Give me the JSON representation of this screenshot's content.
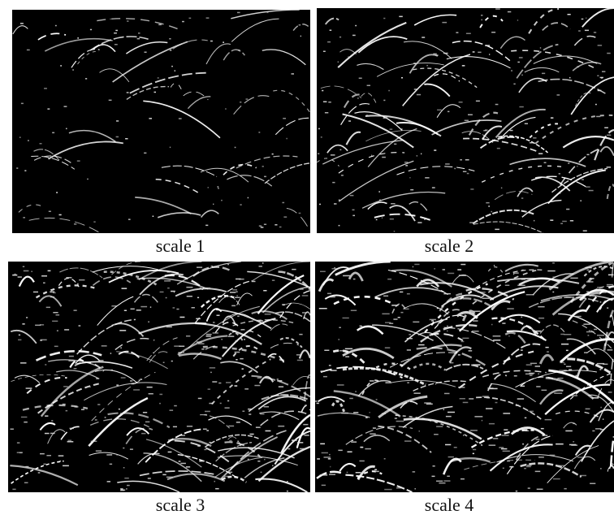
{
  "figure": {
    "panels": [
      {
        "caption": "scale 1"
      },
      {
        "caption": "scale 2"
      },
      {
        "caption": "scale 3"
      },
      {
        "caption": "scale 4"
      }
    ]
  }
}
